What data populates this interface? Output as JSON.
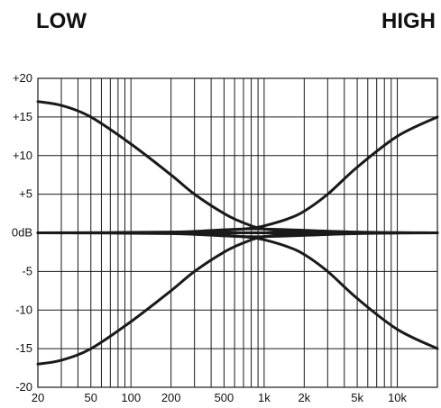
{
  "headings": {
    "low": "LOW",
    "high": "HIGH"
  },
  "chart_data": {
    "type": "line",
    "title": "",
    "xlabel": "",
    "ylabel": "",
    "x_scale": "log",
    "xlim": [
      20,
      20000
    ],
    "ylim": [
      -20,
      20
    ],
    "grid": true,
    "x_major_ticks": [
      {
        "value": 20,
        "label": "20"
      },
      {
        "value": 50,
        "label": "50"
      },
      {
        "value": 100,
        "label": "100"
      },
      {
        "value": 200,
        "label": "200"
      },
      {
        "value": 500,
        "label": "500"
      },
      {
        "value": 1000,
        "label": "1k"
      },
      {
        "value": 2000,
        "label": "2k"
      },
      {
        "value": 5000,
        "label": "5k"
      },
      {
        "value": 10000,
        "label": "10k"
      }
    ],
    "x_grid_values": [
      20,
      30,
      40,
      50,
      60,
      70,
      80,
      90,
      100,
      200,
      300,
      400,
      500,
      600,
      700,
      800,
      900,
      1000,
      2000,
      3000,
      4000,
      5000,
      6000,
      7000,
      8000,
      9000,
      10000,
      20000
    ],
    "y_ticks": [
      {
        "value": 20,
        "label": "+20"
      },
      {
        "value": 15,
        "label": "+15"
      },
      {
        "value": 10,
        "label": "+10"
      },
      {
        "value": 5,
        "label": "+5"
      },
      {
        "value": 0,
        "label": "0dB"
      },
      {
        "value": -5,
        "label": "-5"
      },
      {
        "value": -10,
        "label": "-10"
      },
      {
        "value": -15,
        "label": "-15"
      },
      {
        "value": -20,
        "label": "-20"
      }
    ],
    "series": [
      {
        "x": [
          20,
          30,
          50,
          100,
          200,
          300,
          500,
          700,
          1000,
          2000,
          5000,
          10000,
          20000
        ],
        "y": [
          17,
          16.5,
          15,
          11.5,
          7.5,
          5,
          2.5,
          1.3,
          0.5,
          0.1,
          0,
          0,
          0
        ]
      },
      {
        "x": [
          20,
          30,
          50,
          100,
          200,
          300,
          500,
          700,
          1000,
          2000,
          5000,
          10000,
          20000
        ],
        "y": [
          -17,
          -16.5,
          -15,
          -11.5,
          -7.5,
          -5,
          -2.5,
          -1.3,
          -0.5,
          -0.1,
          0,
          0,
          0
        ]
      },
      {
        "x": [
          20,
          100,
          300,
          500,
          800,
          1000,
          1500,
          2000,
          3000,
          5000,
          10000,
          20000
        ],
        "y": [
          0,
          0,
          0.1,
          0.3,
          0.6,
          0.9,
          1.8,
          2.8,
          5,
          8.5,
          12.5,
          15
        ]
      },
      {
        "x": [
          20,
          100,
          300,
          500,
          800,
          1000,
          1500,
          2000,
          3000,
          5000,
          10000,
          20000
        ],
        "y": [
          0,
          0,
          -0.1,
          -0.3,
          -0.6,
          -0.9,
          -1.8,
          -2.8,
          -5,
          -8.5,
          -12.5,
          -15
        ]
      },
      {
        "x": [
          20,
          200,
          500,
          1000,
          5000,
          20000
        ],
        "y": [
          0,
          0.1,
          0.4,
          0.5,
          0.1,
          0
        ]
      },
      {
        "x": [
          20,
          200,
          500,
          1000,
          5000,
          20000
        ],
        "y": [
          0,
          -0.1,
          -0.4,
          -0.5,
          -0.1,
          0
        ]
      },
      {
        "x": [
          20,
          20000
        ],
        "y": [
          0,
          0
        ]
      }
    ]
  }
}
